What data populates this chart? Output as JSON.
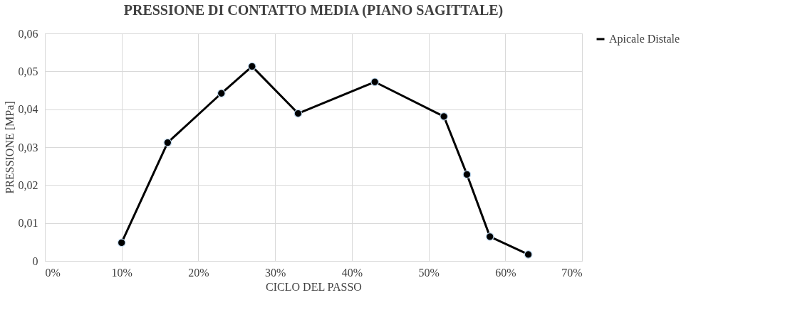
{
  "chart_data": {
    "type": "line",
    "title": "PRESSIONE DI CONTATTO MEDIA (PIANO SAGITTALE)",
    "xlabel": "CICLO DEL PASSO",
    "ylabel": "PRESSIONE [MPa]",
    "x": [
      0.1,
      0.16,
      0.23,
      0.27,
      0.33,
      0.43,
      0.52,
      0.55,
      0.58,
      0.63
    ],
    "series": [
      {
        "name": "Apicale Distale",
        "color": "#000000",
        "values": [
          0.0048,
          0.0312,
          0.0442,
          0.0513,
          0.0389,
          0.0472,
          0.0381,
          0.0228,
          0.0064,
          0.0017
        ]
      }
    ],
    "xlim": [
      0,
      0.7
    ],
    "xticks": [
      {
        "value": 0,
        "label": "0%"
      },
      {
        "value": 0.1,
        "label": "10%"
      },
      {
        "value": 0.2,
        "label": "20%"
      },
      {
        "value": 0.3,
        "label": "30%"
      },
      {
        "value": 0.4,
        "label": "40%"
      },
      {
        "value": 0.5,
        "label": "50%"
      },
      {
        "value": 0.6,
        "label": "60%"
      },
      {
        "value": 0.7,
        "label": "70%"
      }
    ],
    "ylim": [
      0,
      0.06
    ],
    "yticks": [
      0,
      {
        "value": 0.01,
        "label": "0,01"
      },
      {
        "value": 0.02,
        "label": "0,02"
      },
      {
        "value": 0.03,
        "label": "0,03"
      },
      {
        "value": 0.04,
        "label": "0,04"
      },
      {
        "value": 0.05,
        "label": "0,05"
      },
      {
        "value": 0.06,
        "label": "0,06"
      }
    ],
    "grid": true,
    "legend": "right",
    "marker": "circle",
    "line_style": "solid"
  }
}
